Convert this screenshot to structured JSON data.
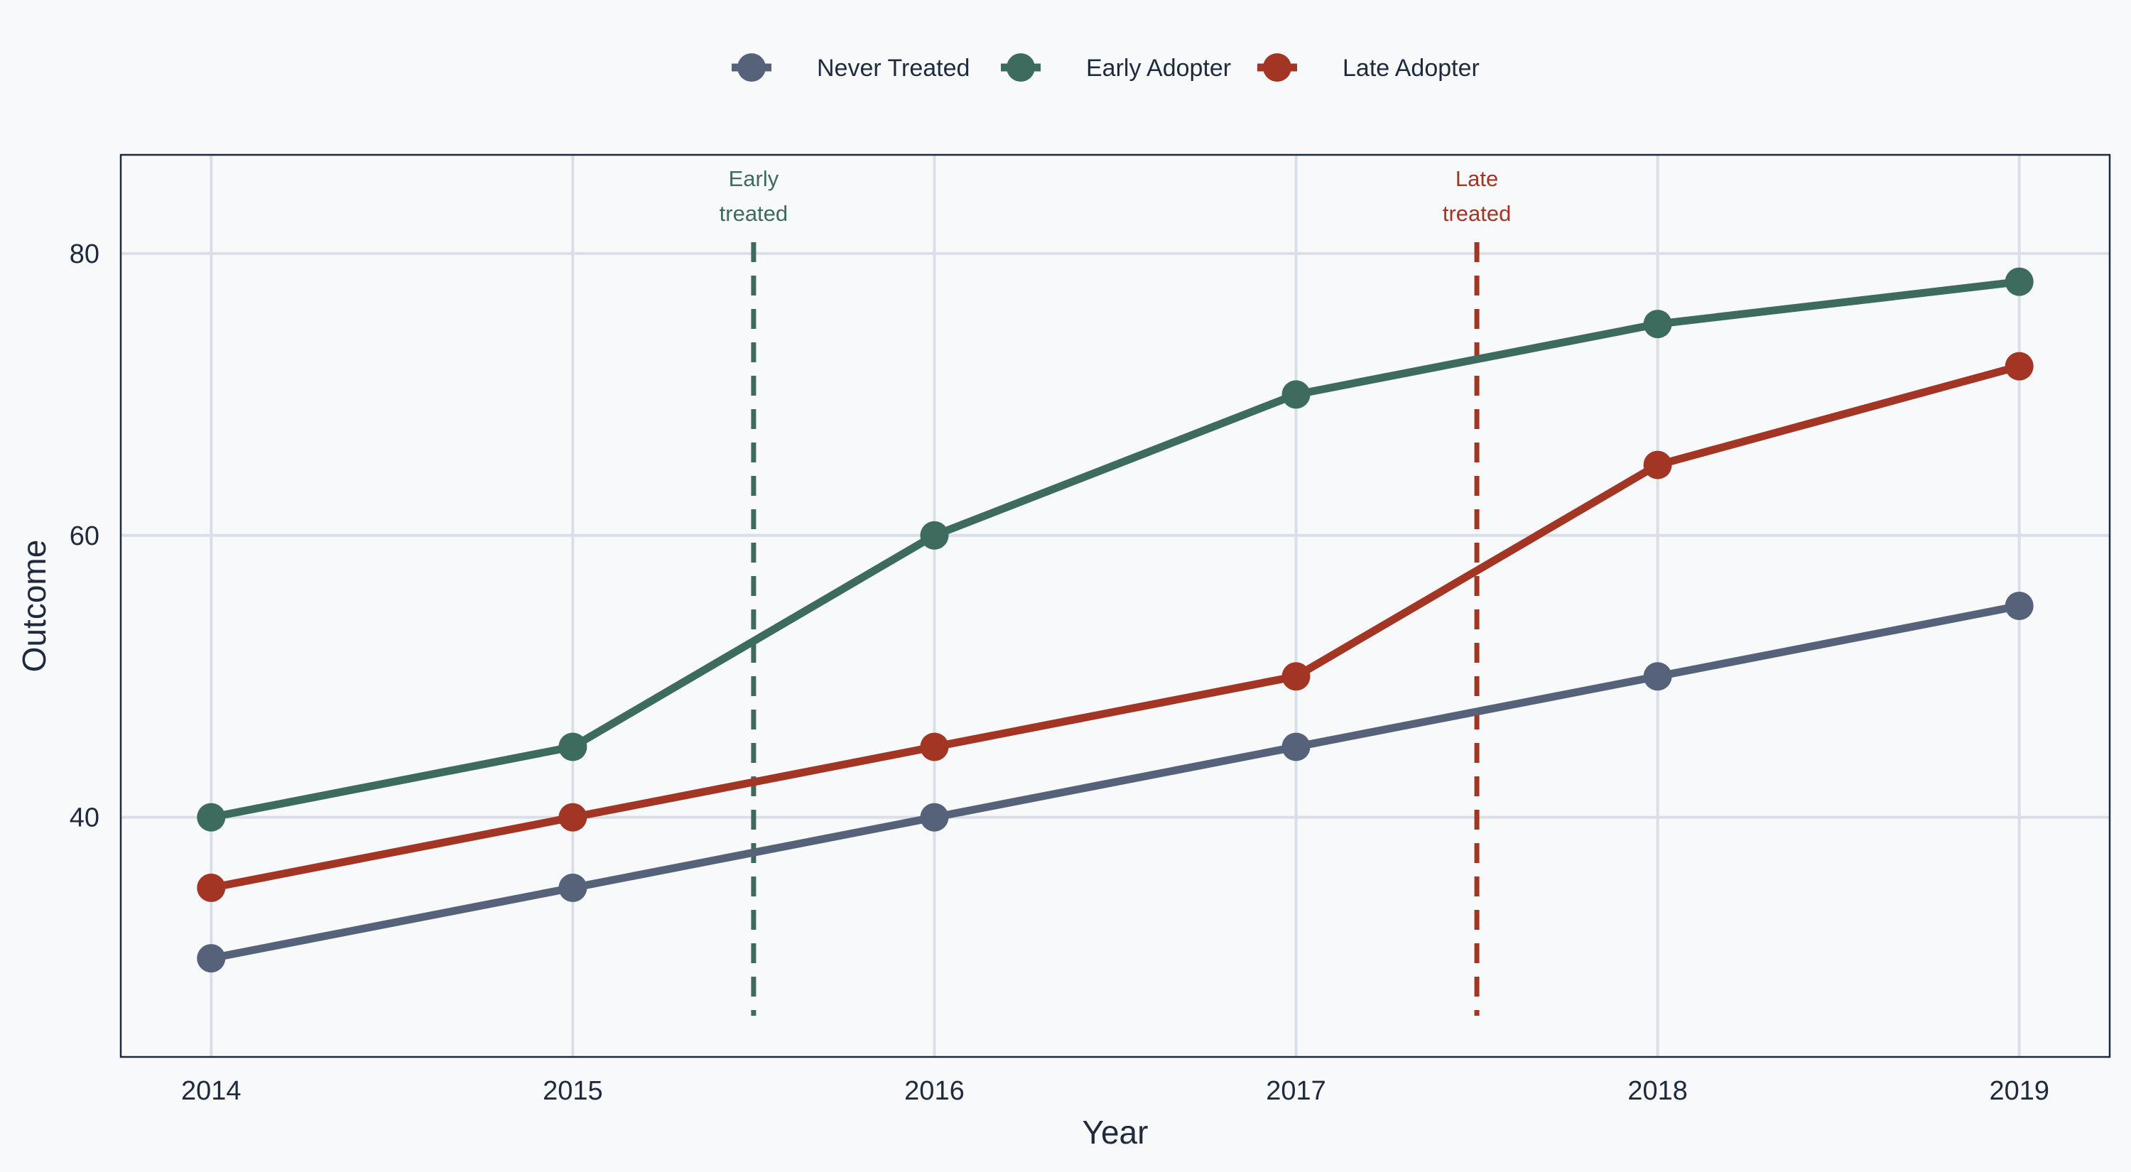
{
  "chart_data": {
    "type": "line",
    "title": "",
    "xlabel": "Year",
    "ylabel": "Outcome",
    "x": [
      2014,
      2015,
      2016,
      2017,
      2018,
      2019
    ],
    "xlim": [
      2013.75,
      2019.25
    ],
    "ylim": [
      23,
      87
    ],
    "yticks": [
      40,
      60,
      80
    ],
    "grid": true,
    "legend_position": "top-center",
    "series": [
      {
        "name": "Never Treated",
        "color": "#55627a",
        "values": [
          30,
          35,
          40,
          45,
          50,
          55
        ]
      },
      {
        "name": "Early Adopter",
        "color": "#3d6b5d",
        "values": [
          40,
          45,
          60,
          70,
          75,
          78
        ]
      },
      {
        "name": "Late Adopter",
        "color": "#a23523",
        "values": [
          35,
          40,
          45,
          50,
          65,
          72
        ]
      }
    ],
    "annotations": [
      {
        "x": 2015.5,
        "line1": "Early",
        "line2": "treated",
        "color": "#3d6b5d",
        "style": "dashed"
      },
      {
        "x": 2017.5,
        "line1": "Late",
        "line2": "treated",
        "color": "#a23523",
        "style": "dashed"
      }
    ]
  },
  "colors": {
    "background": "#f7f9fb",
    "grid": "#d9dee7",
    "frame": "#1f2a3d",
    "text": "#1f2a3d"
  }
}
